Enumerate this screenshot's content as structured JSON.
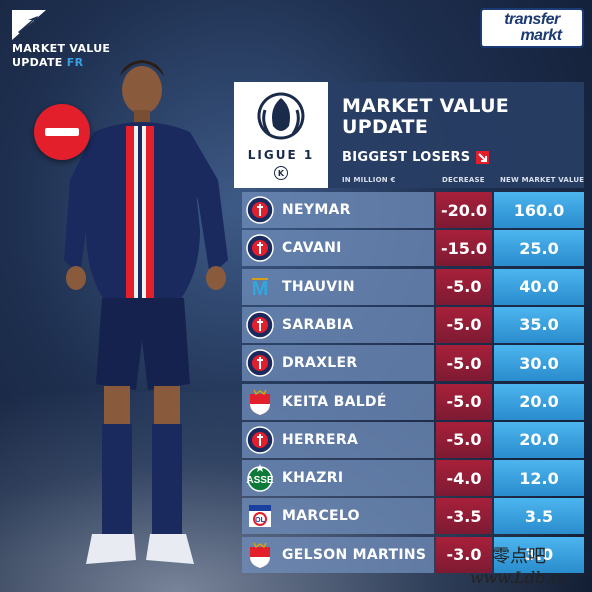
{
  "corner_label": {
    "line1": "MARKET VALUE",
    "line2": "UPDATE",
    "country": "FR"
  },
  "brand": {
    "line1": "transfer",
    "line2": "markt"
  },
  "league": {
    "name": "LIGUE 1"
  },
  "header": {
    "title_line1": "MARKET VALUE",
    "title_line2": "UPDATE",
    "subtitle": "BIGGEST LOSERS",
    "unit": "IN MILLION €",
    "col_decrease": "DECREASE",
    "col_value": "NEW MARKET VALUE"
  },
  "colors": {
    "decrease": "#8c1c35",
    "value": "#3aa0e0",
    "name_bg": "#6e8cb9",
    "accent_red": "#e21f2b"
  },
  "rows": [
    {
      "name": "NEYMAR",
      "club": "psg",
      "decrease": "-20.0",
      "value": "160.0"
    },
    {
      "name": "CAVANI",
      "club": "psg",
      "decrease": "-15.0",
      "value": "25.0"
    },
    {
      "name": "THAUVIN",
      "club": "marseille",
      "decrease": "-5.0",
      "value": "40.0"
    },
    {
      "name": "SARABIA",
      "club": "psg",
      "decrease": "-5.0",
      "value": "35.0"
    },
    {
      "name": "DRAXLER",
      "club": "psg",
      "decrease": "-5.0",
      "value": "30.0"
    },
    {
      "name": "KEITA BALDÉ",
      "club": "monaco",
      "decrease": "-5.0",
      "value": "20.0"
    },
    {
      "name": "HERRERA",
      "club": "psg",
      "decrease": "-5.0",
      "value": "20.0"
    },
    {
      "name": "KHAZRI",
      "club": "saint-etienne",
      "decrease": "-4.0",
      "value": "12.0"
    },
    {
      "name": "MARCELO",
      "club": "lyon",
      "decrease": "-3.5",
      "value": "3.5"
    },
    {
      "name": "GELSON MARTINS",
      "club": "monaco",
      "decrease": "-3.0",
      "value": "3.0"
    }
  ],
  "watermark": {
    "line1": "零点吧",
    "line2": "www.Ldb.cc"
  }
}
